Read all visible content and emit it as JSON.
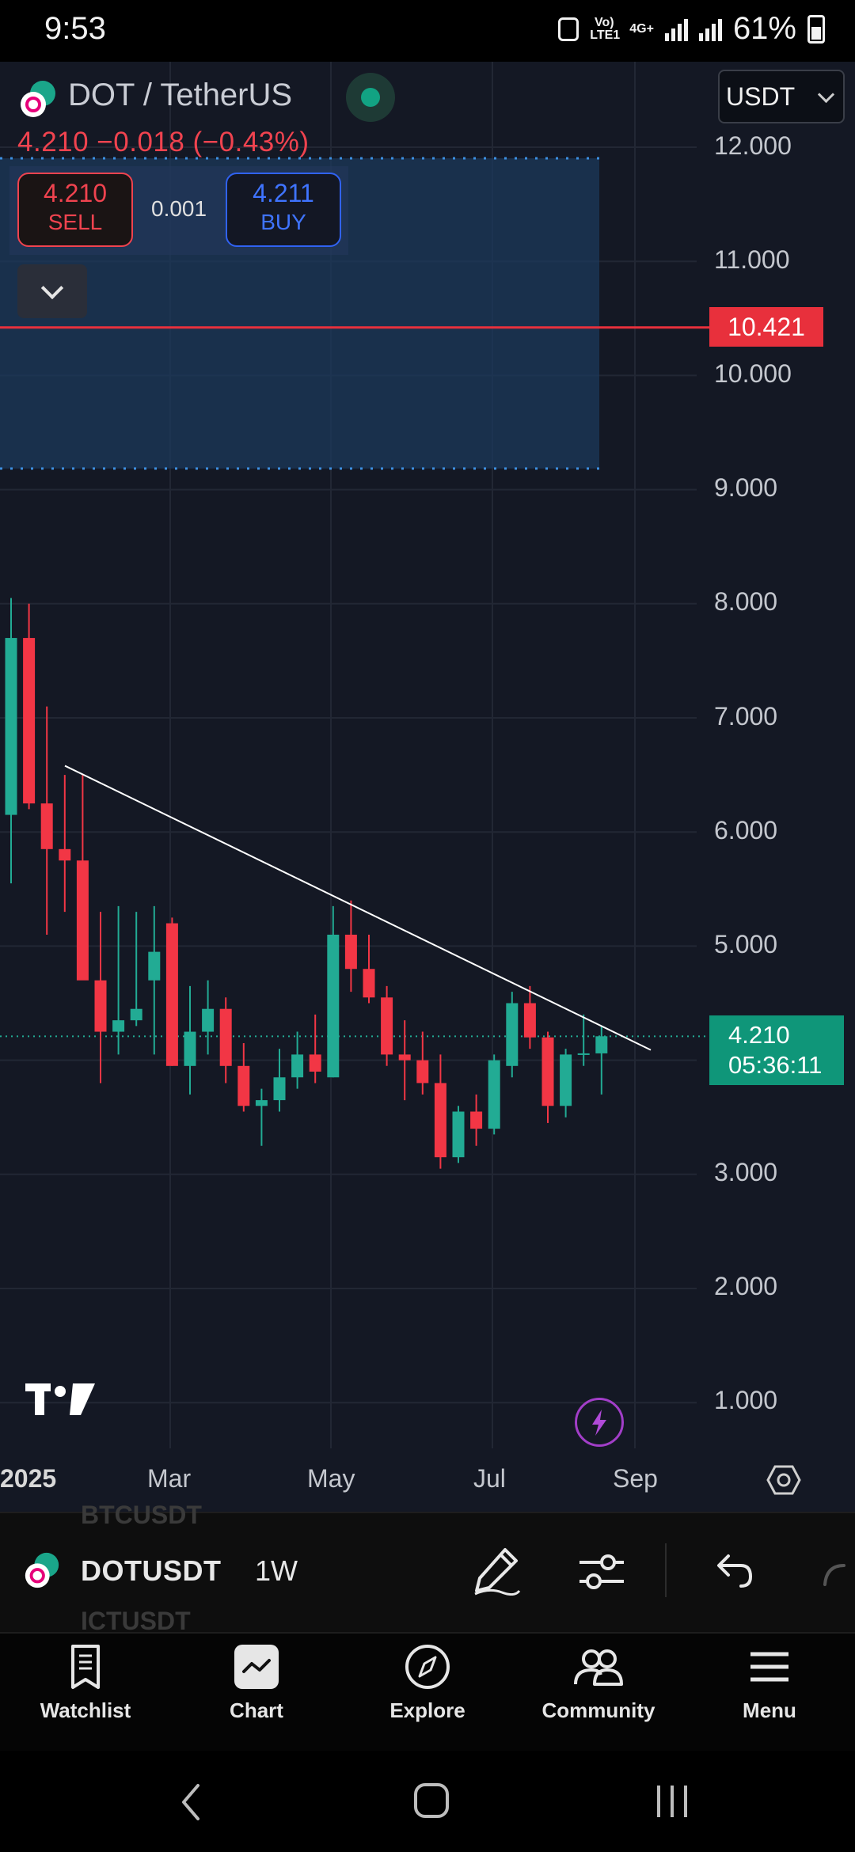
{
  "status_bar": {
    "time": "9:53",
    "network": "Vo) LTE1",
    "network_type": "4G+",
    "battery": "61%"
  },
  "header": {
    "symbol_title": "DOT / TetherUS",
    "price_change": "4.210  −0.018 (−0.43%)",
    "currency": "USDT"
  },
  "trade": {
    "sell_price": "4.210",
    "sell_label": "SELL",
    "spread": "0.001",
    "buy_price": "4.211",
    "buy_label": "BUY"
  },
  "chart_data": {
    "type": "candlestick",
    "ylim": [
      1.0,
      12.0
    ],
    "y_ticks": [
      "12.000",
      "11.000",
      "10.000",
      "9.000",
      "8.000",
      "7.000",
      "6.000",
      "5.000",
      "3.000",
      "2.000",
      "1.000"
    ],
    "x_ticks": [
      "2025",
      "Mar",
      "May",
      "Jul",
      "Sep"
    ],
    "alert_price": "10.421",
    "current_price": "4.210",
    "countdown": "05:36:11",
    "candles": [
      {
        "o": 6.15,
        "h": 8.05,
        "l": 5.55,
        "c": 7.7
      },
      {
        "o": 7.7,
        "h": 8.0,
        "l": 6.2,
        "c": 6.25
      },
      {
        "o": 6.25,
        "h": 7.1,
        "l": 5.1,
        "c": 5.85
      },
      {
        "o": 5.85,
        "h": 6.5,
        "l": 5.3,
        "c": 5.75
      },
      {
        "o": 5.75,
        "h": 6.5,
        "l": 4.75,
        "c": 4.7
      },
      {
        "o": 4.7,
        "h": 5.3,
        "l": 3.8,
        "c": 4.25
      },
      {
        "o": 4.25,
        "h": 5.35,
        "l": 4.05,
        "c": 4.35
      },
      {
        "o": 4.35,
        "h": 5.3,
        "l": 4.3,
        "c": 4.45
      },
      {
        "o": 4.7,
        "h": 5.35,
        "l": 4.05,
        "c": 4.95
      },
      {
        "o": 5.2,
        "h": 5.25,
        "l": 3.95,
        "c": 3.95
      },
      {
        "o": 3.95,
        "h": 4.65,
        "l": 3.7,
        "c": 4.25
      },
      {
        "o": 4.25,
        "h": 4.7,
        "l": 4.05,
        "c": 4.45
      },
      {
        "o": 4.45,
        "h": 4.55,
        "l": 3.8,
        "c": 3.95
      },
      {
        "o": 3.95,
        "h": 4.15,
        "l": 3.55,
        "c": 3.6
      },
      {
        "o": 3.6,
        "h": 3.75,
        "l": 3.25,
        "c": 3.65
      },
      {
        "o": 3.65,
        "h": 4.1,
        "l": 3.55,
        "c": 3.85
      },
      {
        "o": 3.85,
        "h": 4.25,
        "l": 3.75,
        "c": 4.05
      },
      {
        "o": 4.05,
        "h": 4.4,
        "l": 3.8,
        "c": 3.9
      },
      {
        "o": 3.85,
        "h": 5.35,
        "l": 3.85,
        "c": 5.1
      },
      {
        "o": 5.1,
        "h": 5.4,
        "l": 4.6,
        "c": 4.8
      },
      {
        "o": 4.8,
        "h": 5.1,
        "l": 4.5,
        "c": 4.55
      },
      {
        "o": 4.55,
        "h": 4.65,
        "l": 3.95,
        "c": 4.05
      },
      {
        "o": 4.05,
        "h": 4.35,
        "l": 3.65,
        "c": 4.0
      },
      {
        "o": 4.0,
        "h": 4.25,
        "l": 3.7,
        "c": 3.8
      },
      {
        "o": 3.8,
        "h": 4.05,
        "l": 3.05,
        "c": 3.15
      },
      {
        "o": 3.15,
        "h": 3.6,
        "l": 3.1,
        "c": 3.55
      },
      {
        "o": 3.55,
        "h": 3.7,
        "l": 3.25,
        "c": 3.4
      },
      {
        "o": 3.4,
        "h": 4.05,
        "l": 3.35,
        "c": 4.0
      },
      {
        "o": 3.95,
        "h": 4.6,
        "l": 3.85,
        "c": 4.5
      },
      {
        "o": 4.5,
        "h": 4.65,
        "l": 4.1,
        "c": 4.2
      },
      {
        "o": 4.2,
        "h": 4.25,
        "l": 3.45,
        "c": 3.6
      },
      {
        "o": 3.6,
        "h": 4.1,
        "l": 3.5,
        "c": 4.05
      },
      {
        "o": 4.05,
        "h": 4.4,
        "l": 3.95,
        "c": 4.06
      },
      {
        "o": 4.06,
        "h": 4.3,
        "l": 3.7,
        "c": 4.21
      }
    ],
    "trendline": [
      [
        6.58,
        0
      ],
      [
        4.09,
        1
      ]
    ],
    "colors": {
      "up": "#22ab94",
      "down": "#f23645",
      "alert": "#e8303c"
    }
  },
  "toolbar": {
    "symbol": "DOTUSDT",
    "ghost_above": "BTCUSDT",
    "ghost_below": "ICTUSDT",
    "interval": "1W"
  },
  "bottom_nav": [
    {
      "label": "Watchlist",
      "icon": "watchlist-icon"
    },
    {
      "label": "Chart",
      "icon": "chart-icon"
    },
    {
      "label": "Explore",
      "icon": "compass-icon"
    },
    {
      "label": "Community",
      "icon": "community-icon"
    },
    {
      "label": "Menu",
      "icon": "menu-icon"
    }
  ]
}
